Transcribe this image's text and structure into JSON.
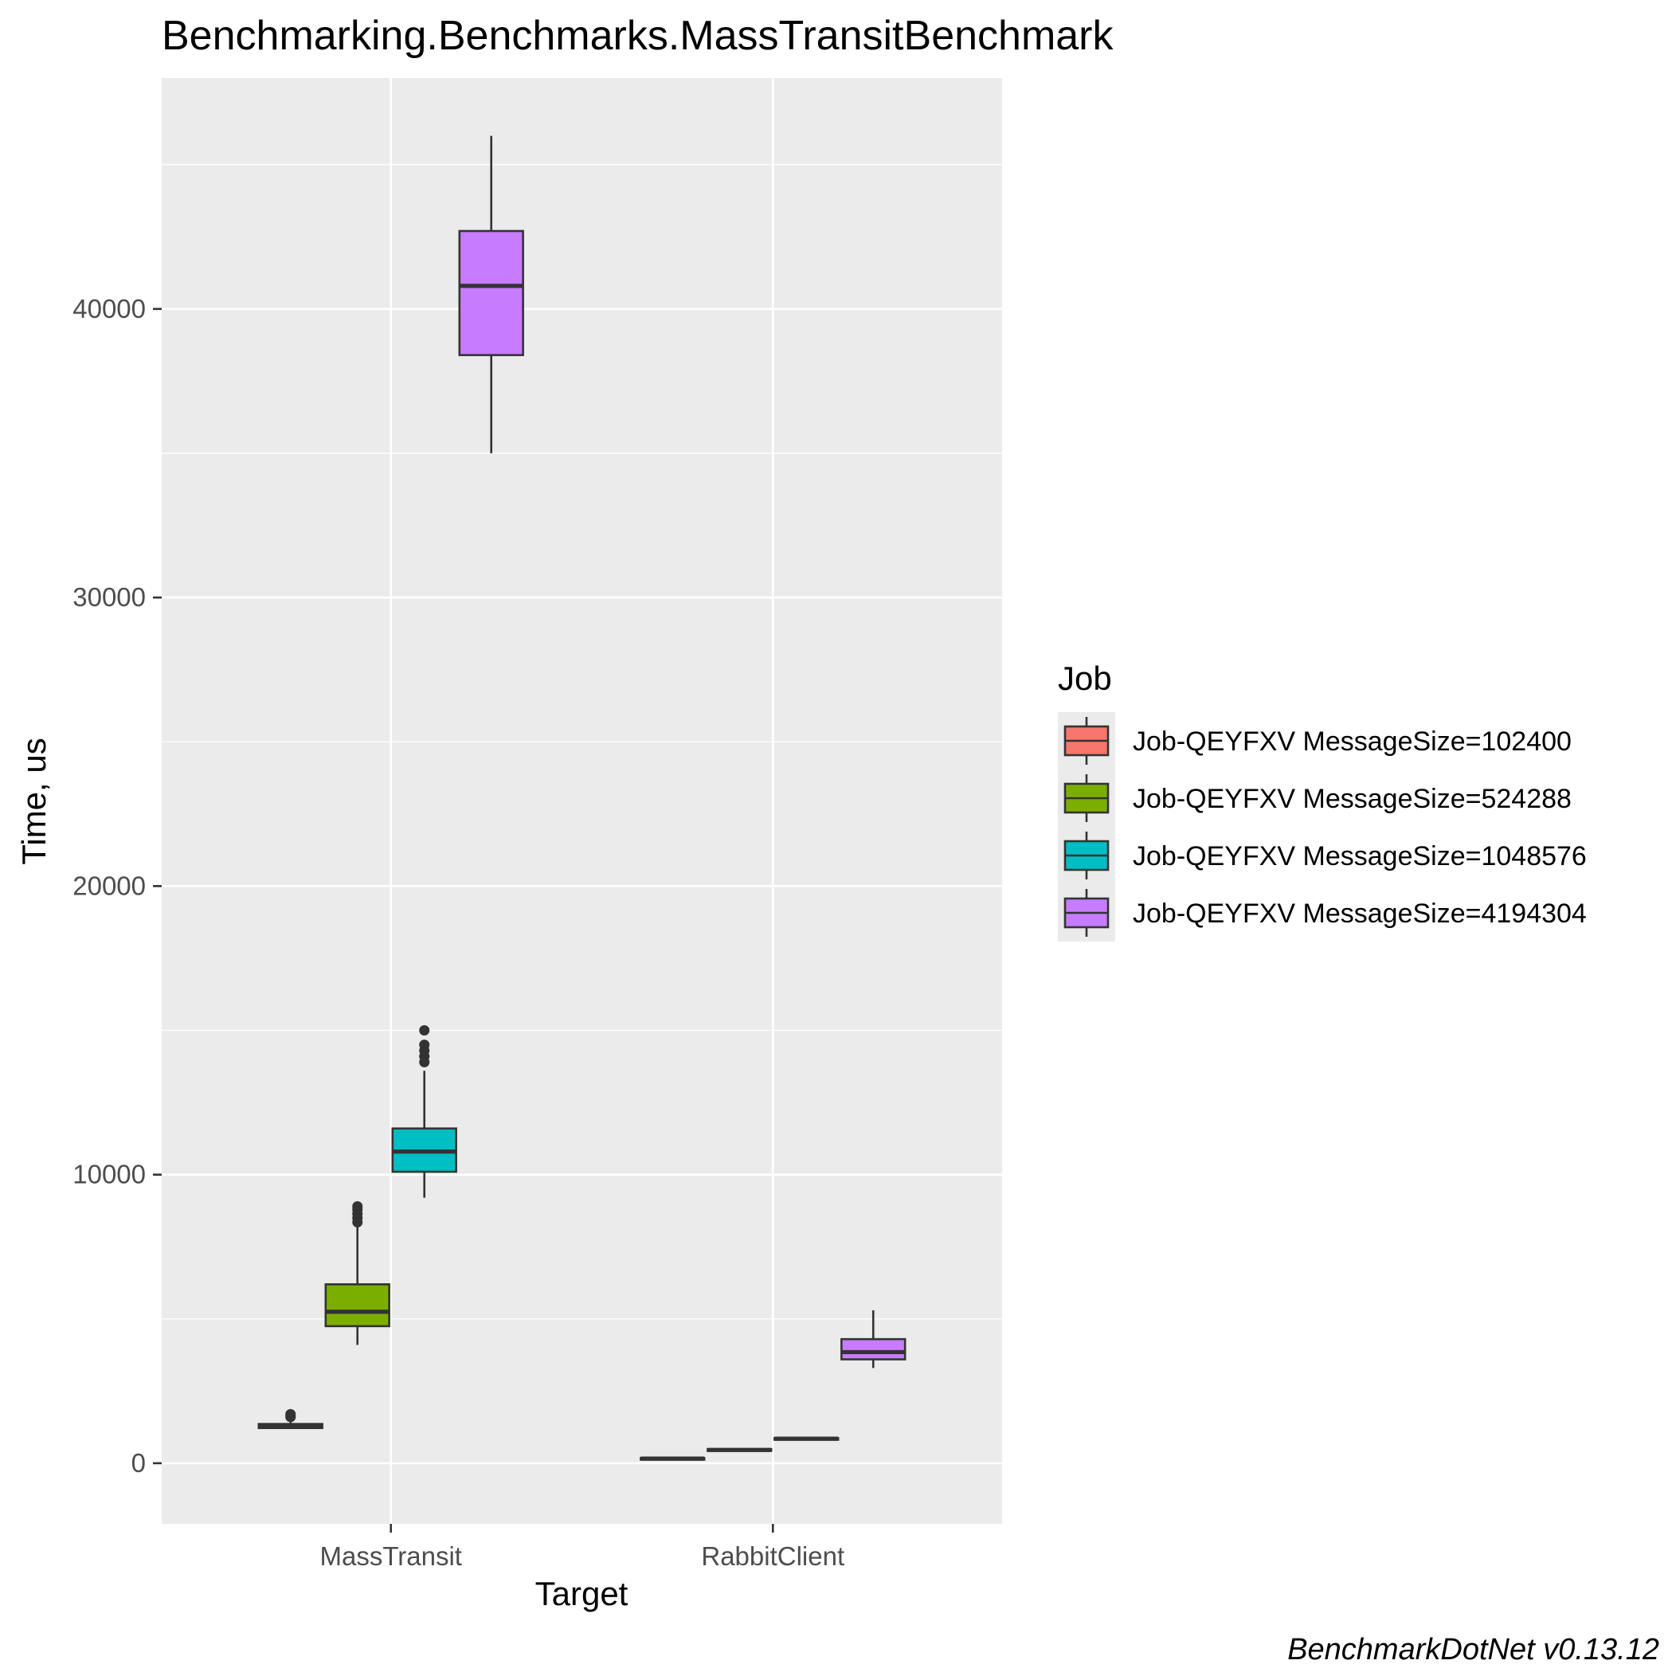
{
  "chart_data": {
    "type": "box",
    "title": "Benchmarking.Benchmarks.MassTransitBenchmark",
    "xlabel": "Target",
    "ylabel": "Time, us",
    "caption": "BenchmarkDotNet v0.13.12",
    "categories": [
      "MassTransit",
      "RabbitClient"
    ],
    "ylim": [
      -2100,
      48000
    ],
    "yticks": [
      0,
      10000,
      20000,
      30000,
      40000
    ],
    "grid": true,
    "legend": {
      "title": "Job",
      "position": "right"
    },
    "series": [
      {
        "name": "Job-QEYFXV MessageSize=102400",
        "color": "#F8766D",
        "boxes": [
          {
            "category": "MassTransit",
            "whisker_low": 1200,
            "q1": 1220,
            "median": 1280,
            "q3": 1360,
            "whisker_high": 1420,
            "outliers": [
              1600,
              1650,
              1700
            ]
          },
          {
            "category": "RabbitClient",
            "whisker_low": 130,
            "q1": 140,
            "median": 160,
            "q3": 180,
            "whisker_high": 190,
            "outliers": []
          }
        ]
      },
      {
        "name": "Job-QEYFXV MessageSize=524288",
        "color": "#7CAE00",
        "boxes": [
          {
            "category": "MassTransit",
            "whisker_low": 4100,
            "q1": 4750,
            "median": 5250,
            "q3": 6200,
            "whisker_high": 8200,
            "outliers": [
              8350,
              8500,
              8650,
              8800,
              8900
            ]
          },
          {
            "category": "RabbitClient",
            "whisker_low": 420,
            "q1": 430,
            "median": 460,
            "q3": 490,
            "whisker_high": 500,
            "outliers": []
          }
        ]
      },
      {
        "name": "Job-QEYFXV MessageSize=1048576",
        "color": "#00BFC4",
        "boxes": [
          {
            "category": "MassTransit",
            "whisker_low": 9200,
            "q1": 10100,
            "median": 10800,
            "q3": 11600,
            "whisker_high": 13600,
            "outliers": [
              13900,
              14100,
              14300,
              14500,
              15000
            ]
          },
          {
            "category": "RabbitClient",
            "whisker_low": 810,
            "q1": 830,
            "median": 850,
            "q3": 870,
            "whisker_high": 880,
            "outliers": []
          }
        ]
      },
      {
        "name": "Job-QEYFXV MessageSize=4194304",
        "color": "#C77CFF",
        "boxes": [
          {
            "category": "MassTransit",
            "whisker_low": 35000,
            "q1": 38400,
            "median": 40800,
            "q3": 42700,
            "whisker_high": 46000,
            "outliers": []
          },
          {
            "category": "RabbitClient",
            "whisker_low": 3300,
            "q1": 3600,
            "median": 3850,
            "q3": 4300,
            "whisker_high": 5300,
            "outliers": []
          }
        ]
      }
    ]
  }
}
